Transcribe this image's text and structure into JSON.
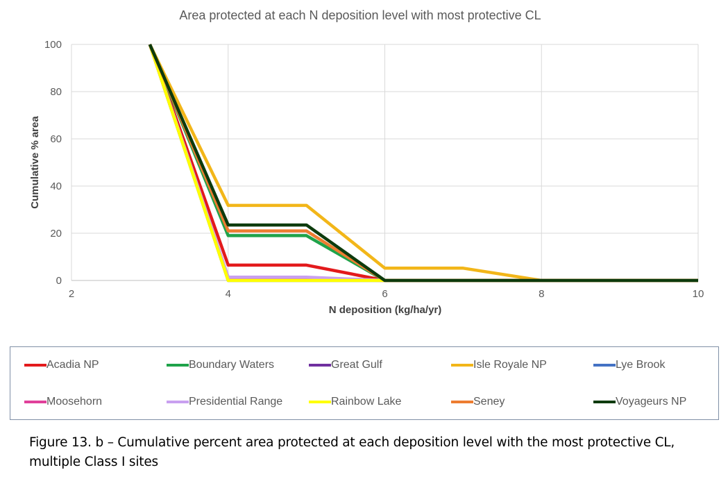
{
  "chart_data": {
    "type": "line",
    "title": "Area protected at each N deposition level with most protective CL",
    "xlabel": "N deposition (kg/ha/yr)",
    "ylabel": "Cumulative % area",
    "xlim": [
      2,
      10
    ],
    "ylim": [
      0,
      100
    ],
    "xticks": [
      "2",
      "4",
      "6",
      "8",
      "10"
    ],
    "yticks": [
      "0",
      "20",
      "40",
      "60",
      "80",
      "100"
    ],
    "grid": true,
    "legend_position": "bottom",
    "x": [
      3,
      4,
      5,
      6,
      7,
      8,
      9,
      10
    ],
    "series": [
      {
        "name": "Acadia NP",
        "color": "#e31a1c",
        "values": [
          100,
          6.5,
          6.5,
          0,
          0,
          0,
          0,
          0
        ]
      },
      {
        "name": "Boundary Waters",
        "color": "#1fa34a",
        "values": [
          100,
          19,
          19,
          0,
          0,
          0,
          0,
          0
        ]
      },
      {
        "name": "Great Gulf",
        "color": "#7030a0",
        "values": [
          100,
          1.2,
          1.2,
          0,
          0,
          0,
          0,
          0
        ]
      },
      {
        "name": "Isle Royale NP",
        "color": "#f2b619",
        "values": [
          100,
          31.8,
          31.8,
          5.2,
          5.2,
          0,
          0,
          0
        ]
      },
      {
        "name": "Lye Brook",
        "color": "#4472c4",
        "values": [
          100,
          0,
          0,
          0,
          0,
          0,
          0,
          0
        ]
      },
      {
        "name": "Moosehorn",
        "color": "#e0409a",
        "values": [
          100,
          0.5,
          0.5,
          0,
          0,
          0,
          0,
          0
        ]
      },
      {
        "name": "Presidential Range",
        "color": "#c9a0f0",
        "values": [
          100,
          1.4,
          1.4,
          0,
          0,
          0,
          0,
          0
        ]
      },
      {
        "name": "Rainbow Lake",
        "color": "#ffff00",
        "values": [
          100,
          0,
          0,
          0,
          0,
          0,
          0,
          0
        ]
      },
      {
        "name": "Seney",
        "color": "#ed7d31",
        "values": [
          100,
          21,
          21,
          0,
          0,
          0,
          0,
          0
        ]
      },
      {
        "name": "Voyageurs NP",
        "color": "#0d3b0d",
        "values": [
          100,
          23.5,
          23.5,
          0,
          0,
          0,
          0,
          0
        ]
      }
    ]
  },
  "caption": "Figure 13. b – Cumulative percent area protected at each deposition level with the most protective CL, multiple Class I sites"
}
